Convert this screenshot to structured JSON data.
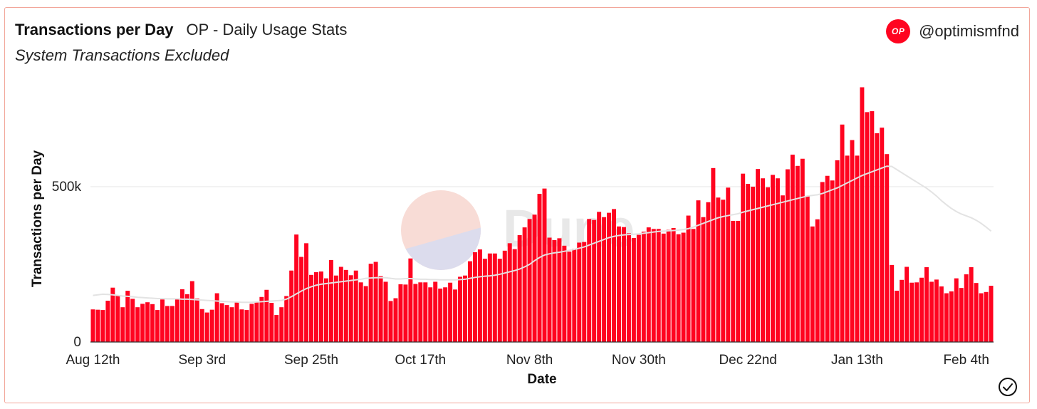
{
  "header": {
    "title": "Transactions per Day",
    "subtitle": "OP - Daily Usage Stats",
    "note": "System Transactions Excluded",
    "handle": "@optimismfnd",
    "logo_text": "OP"
  },
  "colors": {
    "bar": "#ff0420",
    "moving_avg": "#e3e3e3",
    "accent": "#ff0420",
    "border": "#f2a69a"
  },
  "chart_data": {
    "type": "bar",
    "title": "Transactions per Day",
    "subtitle": "OP - Daily Usage Stats",
    "xlabel": "Date",
    "ylabel": "Transactions per Day",
    "ylim": [
      0,
      800000
    ],
    "yticks": [
      0,
      500000
    ],
    "ytick_labels": [
      "0",
      "500k"
    ],
    "xtick_labels": [
      "Aug 12th",
      "Sep 3rd",
      "Sep 25th",
      "Oct 17th",
      "Nov 8th",
      "Nov 30th",
      "Dec 22nd",
      "Jan 13th",
      "Feb 4th"
    ],
    "xtick_index": [
      0,
      22,
      44,
      66,
      88,
      110,
      132,
      154,
      176
    ],
    "grid": "horizontal",
    "start_date": "Aug 12th",
    "values": [
      105000,
      104000,
      103000,
      133000,
      175000,
      150000,
      112000,
      165000,
      139000,
      112000,
      123000,
      128000,
      122000,
      103000,
      137000,
      116000,
      116000,
      140000,
      170000,
      154000,
      196000,
      140000,
      106000,
      95000,
      104000,
      157000,
      125000,
      119000,
      112000,
      129000,
      105000,
      103000,
      123000,
      130000,
      145000,
      168000,
      126000,
      87000,
      112000,
      148000,
      230000,
      346000,
      274000,
      318000,
      216000,
      225000,
      227000,
      205000,
      264000,
      214000,
      242000,
      232000,
      215000,
      230000,
      192000,
      180000,
      252000,
      258000,
      212000,
      194000,
      132000,
      141000,
      186000,
      185000,
      269000,
      187000,
      192000,
      192000,
      176000,
      194000,
      172000,
      176000,
      191000,
      169000,
      210000,
      214000,
      260000,
      289000,
      298000,
      268000,
      285000,
      285000,
      268000,
      294000,
      318000,
      299000,
      344000,
      369000,
      396000,
      410000,
      477000,
      494000,
      336000,
      328000,
      334000,
      310000,
      291000,
      300000,
      320000,
      322000,
      396000,
      393000,
      419000,
      402000,
      416000,
      428000,
      372000,
      370000,
      350000,
      335000,
      345000,
      355000,
      369000,
      364000,
      364000,
      349000,
      361000,
      367000,
      347000,
      352000,
      407000,
      364000,
      456000,
      402000,
      450000,
      560000,
      465000,
      458000,
      497000,
      390000,
      390000,
      542000,
      509000,
      500000,
      557000,
      527000,
      498000,
      538000,
      527000,
      472000,
      556000,
      603000,
      567000,
      590000,
      470000,
      372000,
      395000,
      515000,
      535000,
      520000,
      585000,
      700000,
      600000,
      650000,
      600000,
      820000,
      740000,
      743000,
      672000,
      690000,
      605000,
      248000,
      165000,
      200000,
      242000,
      191000,
      192000,
      207000,
      241000,
      194000,
      201000,
      179000,
      157000,
      163000,
      205000,
      174000,
      218000,
      241000,
      190000,
      157000,
      161000,
      181000
    ],
    "series": [
      {
        "type": "line",
        "values": [
          150000,
          152000,
          154000,
          153000,
          152000,
          150000,
          148000,
          147000,
          146000,
          144000,
          143000,
          142000,
          141000,
          140000,
          140000,
          139000,
          139000,
          139000,
          138000,
          138000,
          137000,
          136000,
          135000,
          134000,
          133000,
          132000,
          131000,
          130000,
          129000,
          129000,
          128000,
          128000,
          128000,
          129000,
          130000,
          131000,
          132000,
          133000,
          134000,
          138000,
          146000,
          155000,
          164000,
          172000,
          178000,
          183000,
          186000,
          188000,
          190000,
          192000,
          194000,
          196000,
          198000,
          200000,
          202000,
          205000,
          206000,
          207000,
          207000,
          207000,
          205000,
          203000,
          203000,
          204000,
          204000,
          203000,
          202000,
          202000,
          201000,
          201000,
          200000,
          200000,
          200000,
          200000,
          201000,
          202000,
          205000,
          208000,
          210000,
          212000,
          213000,
          215000,
          218000,
          222000,
          226000,
          230000,
          235000,
          242000,
          250000,
          262000,
          272000,
          280000,
          284000,
          287000,
          289000,
          292000,
          295000,
          298000,
          302000,
          306000,
          312000,
          318000,
          324000,
          330000,
          336000,
          340000,
          343000,
          345000,
          346000,
          347000,
          348000,
          350000,
          352000,
          354000,
          356000,
          357000,
          358000,
          359000,
          360000,
          362000,
          365000,
          370000,
          376000,
          382000,
          388000,
          394000,
          400000,
          404000,
          407000,
          410000,
          413000,
          418000,
          422000,
          426000,
          430000,
          434000,
          438000,
          442000,
          446000,
          450000,
          454000,
          458000,
          462000,
          466000,
          470000,
          472000,
          474000,
          478000,
          484000,
          490000,
          496000,
          504000,
          512000,
          520000,
          528000,
          536000,
          542000,
          548000,
          554000,
          560000,
          566000,
          565000,
          555000,
          545000,
          535000,
          525000,
          515000,
          505000,
          495000,
          483000,
          470000,
          455000,
          442000,
          430000,
          420000,
          412000,
          406000,
          400000,
          392000,
          382000,
          370000,
          357000
        ]
      }
    ]
  }
}
